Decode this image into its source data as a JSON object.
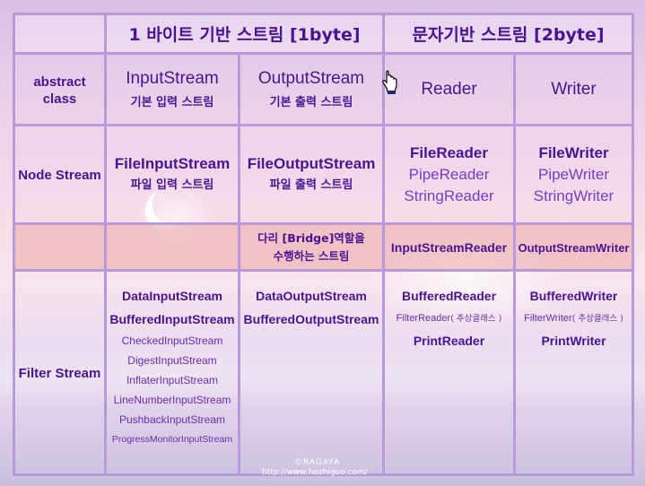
{
  "header": {
    "byte_title": "1 바이트 기반 스트림 [1byte]",
    "char_title": "문자기반 스트림 [2byte]"
  },
  "rows": {
    "abstract": "abstract class",
    "node": "Node Stream",
    "filter": "Filter Stream"
  },
  "abstract_class": {
    "input": {
      "name": "InputStream",
      "ko": "기본 입력 스트림"
    },
    "output": {
      "name": "OutputStream",
      "ko": "기본 출력 스트림"
    },
    "reader": "Reader",
    "writer": "Writer"
  },
  "node_stream": {
    "input": {
      "name": "FileInputStream",
      "ko": "파일 입력 스트림"
    },
    "output": {
      "name": "FileOutputStream",
      "ko": "파일 출력 스트림"
    },
    "reader": [
      "FileReader",
      "PipeReader",
      "StringReader"
    ],
    "writer": [
      "FileWriter",
      "PipeWriter",
      "StringWriter"
    ]
  },
  "bridge": {
    "desc_line1": "다리 [Bridge]역할을",
    "desc_line2": "수행하는 스트림",
    "reader": "InputStreamReader",
    "writer": "OutputStreamWriter"
  },
  "filter_stream": {
    "input_main": [
      "DataInputStream",
      "BufferedInputStream"
    ],
    "input_more": [
      "CheckedInputStream",
      "DigestInputStream",
      "InflaterInputStream",
      "LineNumberInputStream",
      "PushbackInputStream"
    ],
    "input_last": "ProgressMonitorInputStream",
    "output": [
      "DataOutputStream",
      "BufferedOutputStream"
    ],
    "reader": {
      "buffered": "BufferedReader",
      "filter": "FilterReader",
      "filter_note": "( 추상클래스 )",
      "print": "PrintReader"
    },
    "writer": {
      "buffered": "BufferedWriter",
      "filter": "FilterWriter",
      "filter_note": "( 추상클래스 )",
      "print": "PrintWriter"
    }
  },
  "watermark": {
    "line1": "©RAGAYA",
    "line2": "http://www.hozhiguo.com/"
  },
  "colors": {
    "text": "#4a1490",
    "grid": "#b89ad8",
    "bridge_row": "#eba8a8"
  }
}
